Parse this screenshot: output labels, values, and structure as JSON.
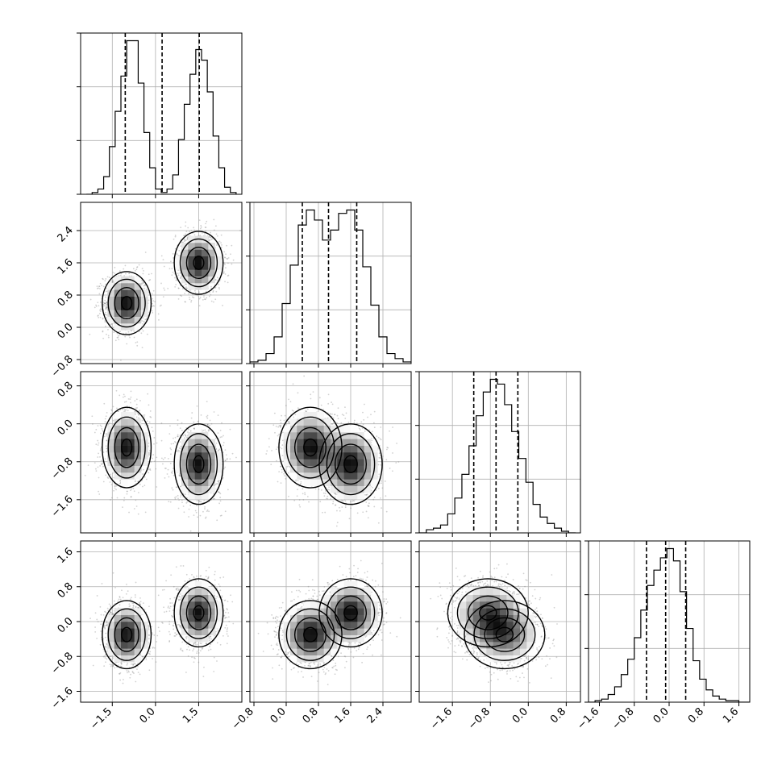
{
  "chart_data": {
    "type": "corner",
    "grid": true,
    "colors": {
      "hist": "#000000",
      "points": "#7f7f7f",
      "contour_line": "#000000",
      "grid": "#b0b0b0"
    },
    "parameters": [
      {
        "id": "p0",
        "range": [
          -2.6,
          3.0
        ],
        "ticks": [
          -1.5,
          0.0,
          1.5
        ],
        "tick_labels": [
          "−1.5",
          "0.0",
          "1.5"
        ]
      },
      {
        "id": "p1",
        "range": [
          -0.9,
          3.1
        ],
        "ticks": [
          -0.8,
          0.0,
          0.8,
          1.6,
          2.4
        ],
        "tick_labels": [
          "−0.8",
          "0.0",
          "0.8",
          "1.6",
          "2.4"
        ]
      },
      {
        "id": "p2",
        "range": [
          -2.3,
          1.1
        ],
        "ticks": [
          -1.6,
          -0.8,
          0.0,
          0.8
        ],
        "tick_labels": [
          "−1.6",
          "−0.8",
          "0.0",
          "0.8"
        ]
      },
      {
        "id": "p3",
        "range": [
          -1.85,
          1.85
        ],
        "ticks": [
          -1.6,
          -0.8,
          0.0,
          0.8,
          1.6
        ],
        "tick_labels": [
          "−1.6",
          "−0.8",
          "0.0",
          "0.8",
          "1.6"
        ]
      }
    ],
    "histograms": [
      {
        "param": "p0",
        "quantiles": [
          -1.05,
          0.23,
          1.52
        ],
        "bins": [
          -2.4,
          -2.2,
          -2.0,
          -1.8,
          -1.6,
          -1.4,
          -1.2,
          -1.0,
          -0.8,
          -0.6,
          -0.4,
          -0.2,
          0.0,
          0.2,
          0.4,
          0.6,
          0.8,
          1.0,
          1.2,
          1.4,
          1.6,
          1.8,
          2.0,
          2.2,
          2.4,
          2.6,
          2.8
        ],
        "counts": [
          0,
          1,
          3,
          10,
          27,
          47,
          67,
          87,
          87,
          63,
          35,
          15,
          3,
          1,
          3,
          11,
          31,
          51,
          68,
          82,
          76,
          58,
          33,
          15,
          4,
          1,
          0
        ]
      },
      {
        "param": "p1",
        "quantiles": [
          0.4,
          1.05,
          1.75
        ],
        "bins": [
          -0.9,
          -0.7,
          -0.5,
          -0.3,
          -0.1,
          0.1,
          0.3,
          0.5,
          0.7,
          0.9,
          1.1,
          1.3,
          1.5,
          1.7,
          1.9,
          2.1,
          2.3,
          2.5,
          2.7,
          2.9,
          3.1
        ],
        "counts": [
          1,
          2,
          6,
          16,
          36,
          59,
          83,
          92,
          86,
          74,
          80,
          90,
          92,
          80,
          58,
          35,
          16,
          6,
          3,
          1
        ]
      },
      {
        "param": "p2",
        "quantiles": [
          -1.15,
          -0.68,
          -0.22
        ],
        "bins": [
          -2.3,
          -2.15,
          -2.0,
          -1.85,
          -1.7,
          -1.55,
          -1.4,
          -1.25,
          -1.1,
          -0.95,
          -0.8,
          -0.65,
          -0.5,
          -0.35,
          -0.2,
          -0.05,
          0.1,
          0.25,
          0.4,
          0.55,
          0.7,
          0.85,
          1.0
        ],
        "counts": [
          0,
          2,
          3,
          5,
          12,
          22,
          37,
          55,
          74,
          89,
          97,
          94,
          81,
          64,
          47,
          32,
          18,
          10,
          6,
          3,
          1,
          0
        ]
      },
      {
        "param": "p3",
        "quantiles": [
          -0.52,
          -0.08,
          0.38
        ],
        "bins": [
          -1.85,
          -1.7,
          -1.55,
          -1.4,
          -1.25,
          -1.1,
          -0.95,
          -0.8,
          -0.65,
          -0.5,
          -0.35,
          -0.2,
          -0.05,
          0.1,
          0.25,
          0.4,
          0.55,
          0.7,
          0.85,
          1.0,
          1.15,
          1.3,
          1.45,
          1.6,
          1.75,
          1.85
        ],
        "counts": [
          0,
          1,
          2,
          5,
          10,
          18,
          28,
          42,
          60,
          76,
          86,
          94,
          100,
          92,
          72,
          48,
          27,
          15,
          8,
          4,
          2,
          1,
          1,
          0,
          0
        ]
      }
    ],
    "modes": [
      {
        "weight": 0.5,
        "mean": [
          -1.0,
          0.6,
          -0.5,
          -0.3
        ],
        "std": [
          0.38,
          0.35,
          0.38,
          0.35
        ]
      },
      {
        "weight": 0.5,
        "mean": [
          1.5,
          1.6,
          -0.85,
          0.2
        ],
        "std": [
          0.38,
          0.35,
          0.38,
          0.35
        ]
      }
    ]
  }
}
